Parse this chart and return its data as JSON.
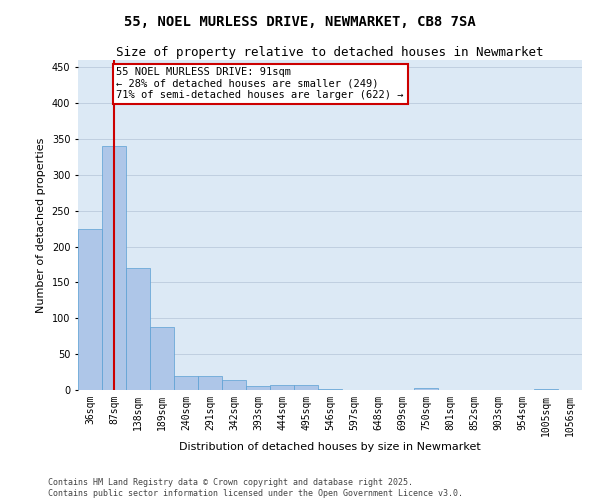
{
  "title": "55, NOEL MURLESS DRIVE, NEWMARKET, CB8 7SA",
  "subtitle": "Size of property relative to detached houses in Newmarket",
  "xlabel": "Distribution of detached houses by size in Newmarket",
  "ylabel": "Number of detached properties",
  "categories": [
    "36sqm",
    "87sqm",
    "138sqm",
    "189sqm",
    "240sqm",
    "291sqm",
    "342sqm",
    "393sqm",
    "444sqm",
    "495sqm",
    "546sqm",
    "597sqm",
    "648sqm",
    "699sqm",
    "750sqm",
    "801sqm",
    "852sqm",
    "903sqm",
    "954sqm",
    "1005sqm",
    "1056sqm"
  ],
  "values": [
    225,
    340,
    170,
    88,
    20,
    20,
    14,
    6,
    7,
    7,
    2,
    0,
    0,
    0,
    3,
    0,
    0,
    0,
    0,
    1,
    0
  ],
  "bar_color": "#aec6e8",
  "bar_edge_color": "#5a9fd4",
  "vline_x": 1,
  "vline_color": "#cc0000",
  "annotation_text": "55 NOEL MURLESS DRIVE: 91sqm\n← 28% of detached houses are smaller (249)\n71% of semi-detached houses are larger (622) →",
  "annotation_box_color": "#ffffff",
  "annotation_box_edge_color": "#cc0000",
  "ylim": [
    0,
    460
  ],
  "yticks": [
    0,
    50,
    100,
    150,
    200,
    250,
    300,
    350,
    400,
    450
  ],
  "grid_color": "#c0cfe0",
  "background_color": "#dce9f5",
  "footer_text": "Contains HM Land Registry data © Crown copyright and database right 2025.\nContains public sector information licensed under the Open Government Licence v3.0.",
  "title_fontsize": 10,
  "subtitle_fontsize": 9,
  "axis_label_fontsize": 8,
  "tick_fontsize": 7,
  "annotation_fontsize": 7.5,
  "footer_fontsize": 6
}
